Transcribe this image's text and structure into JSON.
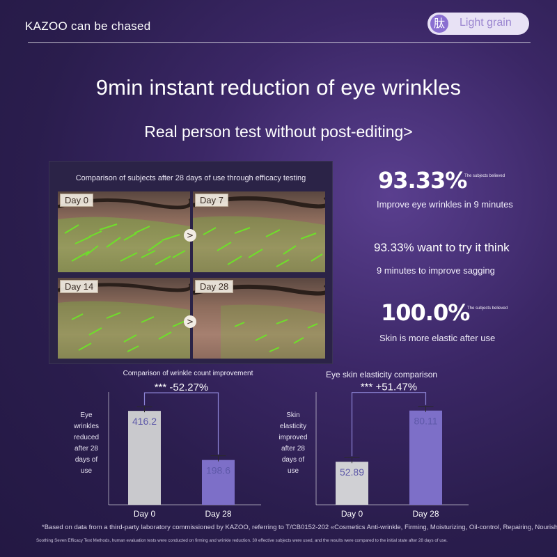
{
  "header": {
    "brand": "KAZOO can be chased",
    "badge_glyph": "肽",
    "badge_text": "Light grain"
  },
  "title": "9min instant reduction of eye wrinkles",
  "subtitle": "Real person test without post-editing>",
  "photo_panel": {
    "heading": "Comparison of subjects after 28 days of use through efficacy testing",
    "days": [
      "Day 0",
      "Day 7",
      "Day 14",
      "Day 28"
    ],
    "arrow_glyph": ">"
  },
  "stats": {
    "s1_value": "93.33%",
    "s1_note": "The subjects believed",
    "s1_line": "Improve eye wrinkles in 9 minutes",
    "s2_line1": "93.33% want to try it think",
    "s2_line2": "9 minutes to improve sagging",
    "s3_value": "100.0%",
    "s3_note": "The subjects believed",
    "s3_line": "Skin is more elastic after use"
  },
  "chart_data": [
    {
      "type": "bar",
      "title": "Comparison of wrinkle count improvement",
      "ylabel": "Eye wrinkles reduced after 28 days of use",
      "categories": [
        "Day 0",
        "Day 28"
      ],
      "values": [
        416.2,
        198.6
      ],
      "value_labels": [
        "416.2",
        "198.6"
      ],
      "annotation": "*** -52.27%",
      "colors": [
        "#c9c9cd",
        "#7d6fc8"
      ],
      "ylim": [
        0,
        500
      ]
    },
    {
      "type": "bar",
      "title": "Eye skin elasticity comparison",
      "ylabel": "Skin elasticity improved after 28 days of use",
      "categories": [
        "Day 0",
        "Day 28"
      ],
      "values": [
        52.89,
        80.11
      ],
      "value_labels": [
        "52.89",
        "80.11"
      ],
      "annotation": "*** +51.47%",
      "colors": [
        "#d0d0d4",
        "#7d6fc8"
      ],
      "ylim": [
        30,
        90
      ]
    }
  ],
  "footnote": {
    "line1": "*Based on data from a third-party laboratory commissioned by KAZOO, referring to T/CB0152-202 «Cosmetics Anti-wrinkle, Firming, Moisturizing, Oil-control, Repairing, Nourishing,",
    "line2": "Soothing Seven Efficacy Test Methods, human evaluation tests were conducted on firming and wrinkle reduction. 30 effective subjects were used, and the results were compared to the initial state after 28 days of use."
  }
}
